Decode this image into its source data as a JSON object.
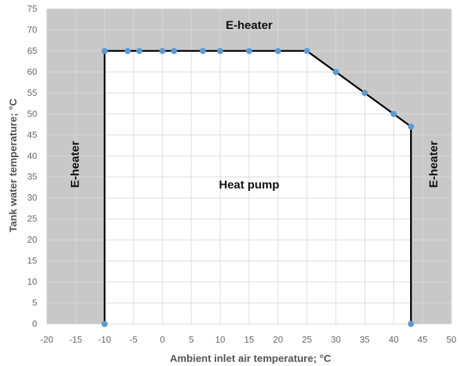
{
  "chart_data": {
    "type": "line",
    "xlabel": "Ambient inlet air temperature; °C",
    "ylabel": "Tank water temperature; °C",
    "xlim": [
      -20,
      50
    ],
    "ylim": [
      0,
      75
    ],
    "xticks": [
      -20,
      -15,
      -10,
      -5,
      0,
      5,
      10,
      15,
      20,
      25,
      30,
      35,
      40,
      45,
      50
    ],
    "yticks": [
      0,
      5,
      10,
      15,
      20,
      25,
      30,
      35,
      40,
      45,
      50,
      55,
      60,
      65,
      70,
      75
    ],
    "grid": true,
    "series": [
      {
        "x": [
          -10,
          -10,
          -6,
          -4,
          0,
          2,
          7,
          10,
          15,
          20,
          25,
          30,
          35,
          40,
          43,
          43
        ],
        "y": [
          0,
          65,
          65,
          65,
          65,
          65,
          65,
          65,
          65,
          65,
          65,
          60,
          55,
          50,
          47,
          0
        ]
      }
    ],
    "annotations": [
      {
        "text": "E-heater",
        "x": 15,
        "y": 71,
        "rotate": false
      },
      {
        "text": "E-heater",
        "x": -15,
        "y": 38,
        "rotate": true
      },
      {
        "text": "E-heater",
        "x": 47,
        "y": 38,
        "rotate": true
      },
      {
        "text": "Heat pump",
        "x": 15,
        "y": 33,
        "rotate": false
      }
    ],
    "colors": {
      "outside_fill": "#c8c8c8",
      "inside_fill": "#ffffff",
      "boundary": "#000000",
      "markers": "#5b9bd5",
      "grid": "#d9d9d9"
    }
  }
}
